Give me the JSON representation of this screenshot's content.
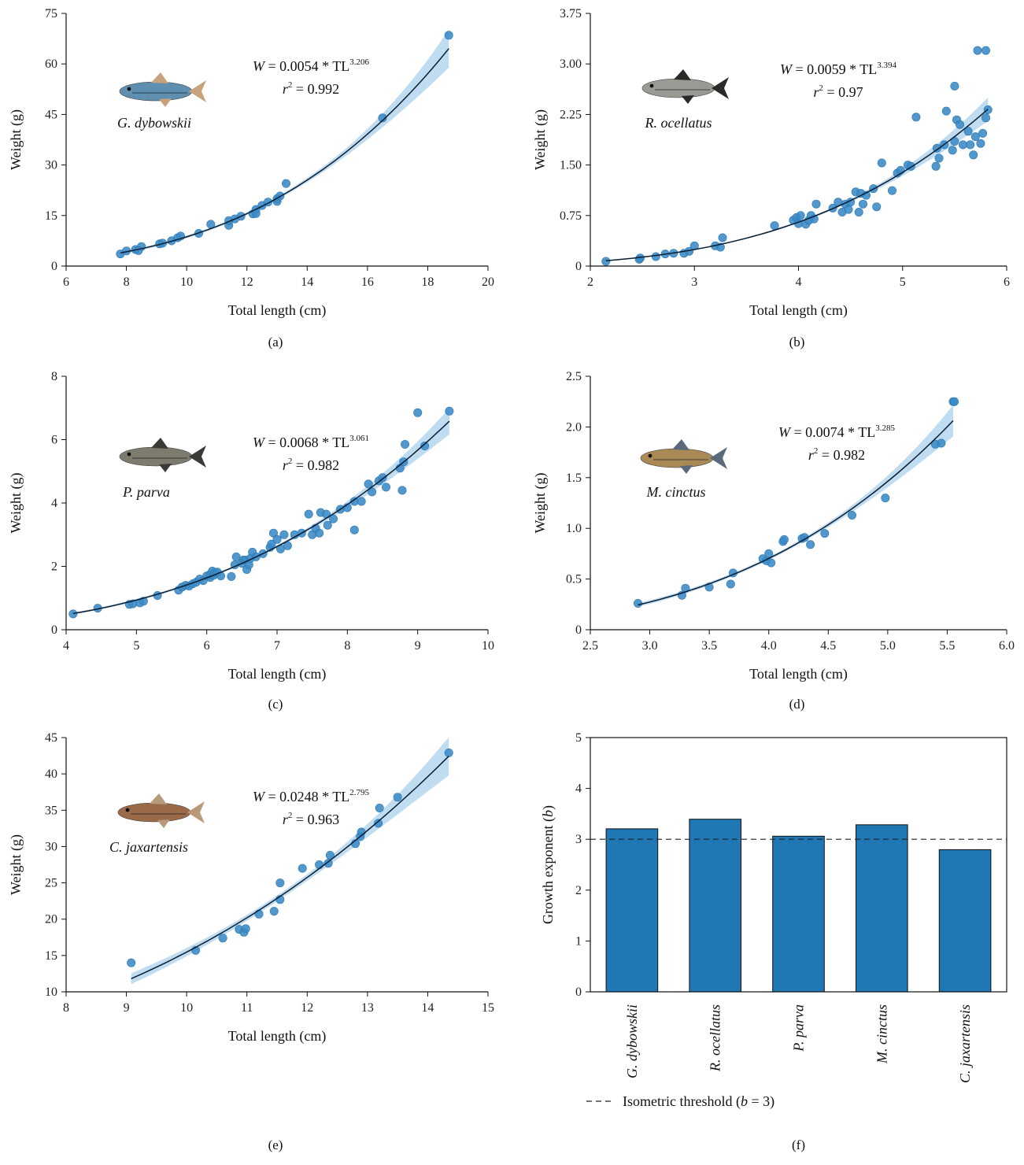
{
  "figure": {
    "legend_text": "Isometric threshold (b = 3)",
    "legend_text_pre": "Isometric threshold (",
    "legend_text_b": "b",
    "legend_text_post": " = 3)"
  },
  "chart_data": [
    {
      "panel": "(a)",
      "type": "scatter",
      "species": "G. dybowskii",
      "equation": {
        "a": "0.0054",
        "b": "3.206",
        "r2": "0.992"
      },
      "xlabel": "Total length (cm)",
      "ylabel": "Weight (g)",
      "xlim": [
        6,
        20
      ],
      "ylim": [
        0,
        75
      ],
      "xticks": [
        6,
        8,
        10,
        12,
        14,
        16,
        18,
        20
      ],
      "yticks": [
        0,
        15,
        30,
        45,
        60,
        75
      ],
      "fit": {
        "a": 0.0054,
        "b": 3.206,
        "x_range": [
          7.8,
          18.7
        ],
        "band": 0.07
      },
      "colors": {
        "fish_body": "#5f8fb0",
        "fish_fin": "#c8a27a"
      },
      "points": [
        [
          7.8,
          3.6
        ],
        [
          8.0,
          4.5
        ],
        [
          8.3,
          4.9
        ],
        [
          8.5,
          5.8
        ],
        [
          8.4,
          4.6
        ],
        [
          9.1,
          6.6
        ],
        [
          9.2,
          6.8
        ],
        [
          9.5,
          7.5
        ],
        [
          9.7,
          8.4
        ],
        [
          9.8,
          8.9
        ],
        [
          10.4,
          9.7
        ],
        [
          10.8,
          12.4
        ],
        [
          11.4,
          12.1
        ],
        [
          11.4,
          13.5
        ],
        [
          11.6,
          14.0
        ],
        [
          11.8,
          14.8
        ],
        [
          12.2,
          15.5
        ],
        [
          12.3,
          16.8
        ],
        [
          12.3,
          15.6
        ],
        [
          12.5,
          18.0
        ],
        [
          12.7,
          19.0
        ],
        [
          13.0,
          19.2
        ],
        [
          13.0,
          20.0
        ],
        [
          13.1,
          20.8
        ],
        [
          13.3,
          24.5
        ],
        [
          16.5,
          44.0
        ],
        [
          18.7,
          68.5
        ]
      ]
    },
    {
      "panel": "(b)",
      "type": "scatter",
      "species": "R. ocellatus",
      "equation": {
        "a": "0.0059",
        "b": "3.394",
        "r2": "0.97"
      },
      "xlabel": "Total length (cm)",
      "ylabel": "Weight (g)",
      "xlim": [
        2,
        6
      ],
      "ylim": [
        0,
        3.75
      ],
      "xticks": [
        2,
        3,
        4,
        5,
        6
      ],
      "yticks": [
        0,
        0.75,
        1.5,
        2.25,
        3.0,
        3.75
      ],
      "ytick_labels": [
        "0",
        "0.75",
        "1.50",
        "2.25",
        "3.00",
        "3.75"
      ],
      "fit": {
        "a": 0.0059,
        "b": 3.394,
        "x_range": [
          2.15,
          5.82
        ],
        "band": 0.06
      },
      "colors": {
        "fish_body": "#9a9a94",
        "fish_fin": "#2a2a2a"
      },
      "points": [
        [
          2.15,
          0.07
        ],
        [
          2.47,
          0.1
        ],
        [
          2.48,
          0.12
        ],
        [
          2.63,
          0.14
        ],
        [
          2.72,
          0.18
        ],
        [
          2.8,
          0.19
        ],
        [
          2.9,
          0.19
        ],
        [
          2.95,
          0.22
        ],
        [
          3.0,
          0.3
        ],
        [
          3.2,
          0.3
        ],
        [
          3.25,
          0.28
        ],
        [
          3.27,
          0.42
        ],
        [
          3.77,
          0.6
        ],
        [
          3.95,
          0.68
        ],
        [
          3.98,
          0.72
        ],
        [
          4.0,
          0.63
        ],
        [
          4.02,
          0.75
        ],
        [
          4.07,
          0.62
        ],
        [
          4.1,
          0.68
        ],
        [
          4.12,
          0.75
        ],
        [
          4.15,
          0.7
        ],
        [
          4.17,
          0.92
        ],
        [
          4.33,
          0.86
        ],
        [
          4.38,
          0.95
        ],
        [
          4.42,
          0.8
        ],
        [
          4.45,
          0.92
        ],
        [
          4.48,
          0.84
        ],
        [
          4.5,
          0.95
        ],
        [
          4.55,
          1.1
        ],
        [
          4.58,
          0.8
        ],
        [
          4.6,
          1.08
        ],
        [
          4.62,
          0.92
        ],
        [
          4.65,
          1.05
        ],
        [
          4.72,
          1.15
        ],
        [
          4.75,
          0.88
        ],
        [
          4.8,
          1.53
        ],
        [
          4.9,
          1.12
        ],
        [
          4.95,
          1.38
        ],
        [
          4.98,
          1.42
        ],
        [
          5.05,
          1.5
        ],
        [
          5.08,
          1.48
        ],
        [
          5.13,
          2.21
        ],
        [
          5.32,
          1.48
        ],
        [
          5.33,
          1.75
        ],
        [
          5.35,
          1.6
        ],
        [
          5.4,
          1.8
        ],
        [
          5.42,
          2.3
        ],
        [
          5.48,
          1.72
        ],
        [
          5.5,
          1.85
        ],
        [
          5.5,
          2.67
        ],
        [
          5.52,
          2.17
        ],
        [
          5.55,
          2.1
        ],
        [
          5.58,
          1.8
        ],
        [
          5.63,
          2.0
        ],
        [
          5.65,
          1.8
        ],
        [
          5.68,
          1.65
        ],
        [
          5.7,
          1.92
        ],
        [
          5.72,
          3.2
        ],
        [
          5.75,
          1.82
        ],
        [
          5.77,
          1.97
        ],
        [
          5.8,
          3.2
        ],
        [
          5.8,
          2.2
        ],
        [
          5.82,
          2.32
        ]
      ]
    },
    {
      "panel": "(c)",
      "type": "scatter",
      "species": "P. parva",
      "equation": {
        "a": "0.0068",
        "b": "3.061",
        "r2": "0.982"
      },
      "xlabel": "Total length (cm)",
      "ylabel": "Weight (g)",
      "xlim": [
        4,
        10
      ],
      "ylim": [
        0,
        8
      ],
      "xticks": [
        4,
        5,
        6,
        7,
        8,
        9,
        10
      ],
      "yticks": [
        0,
        2,
        4,
        6,
        8
      ],
      "fit": {
        "a": 0.0068,
        "b": 3.061,
        "x_range": [
          4.1,
          9.45
        ],
        "band": 0.05
      },
      "colors": {
        "fish_body": "#7d7a6e",
        "fish_fin": "#3a3a36"
      },
      "points": [
        [
          4.1,
          0.5
        ],
        [
          4.45,
          0.68
        ],
        [
          4.9,
          0.8
        ],
        [
          4.95,
          0.82
        ],
        [
          5.05,
          0.85
        ],
        [
          5.1,
          0.9
        ],
        [
          5.3,
          1.08
        ],
        [
          5.6,
          1.25
        ],
        [
          5.65,
          1.35
        ],
        [
          5.7,
          1.4
        ],
        [
          5.75,
          1.38
        ],
        [
          5.8,
          1.45
        ],
        [
          5.85,
          1.5
        ],
        [
          5.9,
          1.6
        ],
        [
          5.95,
          1.55
        ],
        [
          6.0,
          1.7
        ],
        [
          6.05,
          1.65
        ],
        [
          6.05,
          1.75
        ],
        [
          6.08,
          1.85
        ],
        [
          6.1,
          1.72
        ],
        [
          6.12,
          1.8
        ],
        [
          6.15,
          1.82
        ],
        [
          6.2,
          1.7
        ],
        [
          6.35,
          1.68
        ],
        [
          6.4,
          2.05
        ],
        [
          6.42,
          2.3
        ],
        [
          6.5,
          2.1
        ],
        [
          6.52,
          2.2
        ],
        [
          6.55,
          2.2
        ],
        [
          6.57,
          1.9
        ],
        [
          6.6,
          2.05
        ],
        [
          6.62,
          2.25
        ],
        [
          6.65,
          2.45
        ],
        [
          6.7,
          2.3
        ],
        [
          6.8,
          2.4
        ],
        [
          6.9,
          2.6
        ],
        [
          6.92,
          2.7
        ],
        [
          6.95,
          3.05
        ],
        [
          7.0,
          2.85
        ],
        [
          7.05,
          2.55
        ],
        [
          7.1,
          3.0
        ],
        [
          7.15,
          2.65
        ],
        [
          7.25,
          3.0
        ],
        [
          7.35,
          3.05
        ],
        [
          7.45,
          3.65
        ],
        [
          7.5,
          3.0
        ],
        [
          7.55,
          3.2
        ],
        [
          7.6,
          3.05
        ],
        [
          7.62,
          3.7
        ],
        [
          7.7,
          3.65
        ],
        [
          7.72,
          3.3
        ],
        [
          7.8,
          3.5
        ],
        [
          7.9,
          3.8
        ],
        [
          8.0,
          3.85
        ],
        [
          8.1,
          4.05
        ],
        [
          8.1,
          3.15
        ],
        [
          8.2,
          4.05
        ],
        [
          8.3,
          4.6
        ],
        [
          8.35,
          4.35
        ],
        [
          8.45,
          4.7
        ],
        [
          8.5,
          4.8
        ],
        [
          8.55,
          4.5
        ],
        [
          8.75,
          5.1
        ],
        [
          8.78,
          4.4
        ],
        [
          8.8,
          5.3
        ],
        [
          8.82,
          5.85
        ],
        [
          9.0,
          6.85
        ],
        [
          9.1,
          5.8
        ],
        [
          9.45,
          6.9
        ]
      ]
    },
    {
      "panel": "(d)",
      "type": "scatter",
      "species": "M. cinctus",
      "equation": {
        "a": "0.0074",
        "b": "3.285",
        "r2": "0.982"
      },
      "xlabel": "Total length (cm)",
      "ylabel": "Weight (g)",
      "xlim": [
        2.5,
        6.0
      ],
      "ylim": [
        0,
        2.5
      ],
      "xticks": [
        2.5,
        3.0,
        3.5,
        4.0,
        4.5,
        5.0,
        5.5,
        6.0
      ],
      "xtick_labels": [
        "2.5",
        "3.0",
        "3.5",
        "4.0",
        "4.5",
        "5.0",
        "5.5",
        "6.0"
      ],
      "yticks": [
        0,
        0.5,
        1.0,
        1.5,
        2.0,
        2.5
      ],
      "ytick_labels": [
        "0",
        "0.5",
        "1.0",
        "1.5",
        "2.0",
        "2.5"
      ],
      "fit": {
        "a": 0.0074,
        "b": 3.285,
        "x_range": [
          2.9,
          5.55
        ],
        "band": 0.06
      },
      "colors": {
        "fish_body": "#a98a56",
        "fish_fin": "#5a6a7a"
      },
      "points": [
        [
          2.9,
          0.26
        ],
        [
          3.27,
          0.34
        ],
        [
          3.3,
          0.41
        ],
        [
          3.5,
          0.42
        ],
        [
          3.68,
          0.45
        ],
        [
          3.7,
          0.56
        ],
        [
          3.95,
          0.7
        ],
        [
          3.98,
          0.68
        ],
        [
          4.0,
          0.75
        ],
        [
          4.02,
          0.66
        ],
        [
          4.12,
          0.87
        ],
        [
          4.13,
          0.89
        ],
        [
          4.28,
          0.9
        ],
        [
          4.3,
          0.91
        ],
        [
          4.35,
          0.84
        ],
        [
          4.47,
          0.95
        ],
        [
          4.7,
          1.13
        ],
        [
          4.98,
          1.3
        ],
        [
          5.4,
          1.83
        ],
        [
          5.45,
          1.84
        ],
        [
          5.55,
          2.25
        ],
        [
          5.56,
          2.25
        ]
      ]
    },
    {
      "panel": "(e)",
      "type": "scatter",
      "species": "C. jaxartensis",
      "equation": {
        "a": "0.0248",
        "b": "2.795",
        "r2": "0.963"
      },
      "xlabel": "Total length (cm)",
      "ylabel": "Weight (g)",
      "xlim": [
        8,
        15
      ],
      "ylim": [
        10,
        45
      ],
      "xticks": [
        8,
        9,
        10,
        11,
        12,
        13,
        14,
        15
      ],
      "yticks": [
        10,
        15,
        20,
        25,
        30,
        35,
        40,
        45
      ],
      "fit": {
        "a": 0.0248,
        "b": 2.795,
        "x_range": [
          9.08,
          14.35
        ],
        "band": 0.05
      },
      "colors": {
        "fish_body": "#9a6a48",
        "fish_fin": "#b89a7a"
      },
      "points": [
        [
          9.08,
          14.0
        ],
        [
          10.15,
          15.7
        ],
        [
          10.6,
          17.4
        ],
        [
          10.87,
          18.6
        ],
        [
          10.95,
          18.2
        ],
        [
          10.98,
          18.7
        ],
        [
          11.2,
          20.7
        ],
        [
          11.45,
          21.1
        ],
        [
          11.55,
          22.7
        ],
        [
          11.55,
          25.0
        ],
        [
          11.92,
          27.0
        ],
        [
          12.2,
          27.5
        ],
        [
          12.35,
          27.7
        ],
        [
          12.38,
          28.8
        ],
        [
          12.8,
          30.4
        ],
        [
          12.88,
          31.4
        ],
        [
          12.9,
          32.0
        ],
        [
          13.18,
          33.2
        ],
        [
          13.2,
          35.3
        ],
        [
          13.5,
          36.8
        ],
        [
          14.35,
          42.9
        ]
      ]
    },
    {
      "panel": "(f)",
      "type": "bar",
      "categories": [
        "G. dybowskii",
        "R. ocellatus",
        "P. parva",
        "M. cinctus",
        "C. jaxartensis"
      ],
      "values": [
        3.206,
        3.394,
        3.061,
        3.285,
        2.795
      ],
      "ylabel": "Growth exponent (b)",
      "ylabel_pre": "Growth exponent (",
      "ylabel_b": "b",
      "ylabel_post": ")",
      "ylim": [
        0,
        5
      ],
      "yticks": [
        0,
        1,
        2,
        3,
        4,
        5
      ],
      "threshold": 3,
      "bar_color": "#1f77b4"
    }
  ],
  "colors": {
    "point": "#3a8ac6",
    "point_stroke": "#2c78b3",
    "fit_line": "#0b1e33",
    "band": "#b9d8f0"
  }
}
